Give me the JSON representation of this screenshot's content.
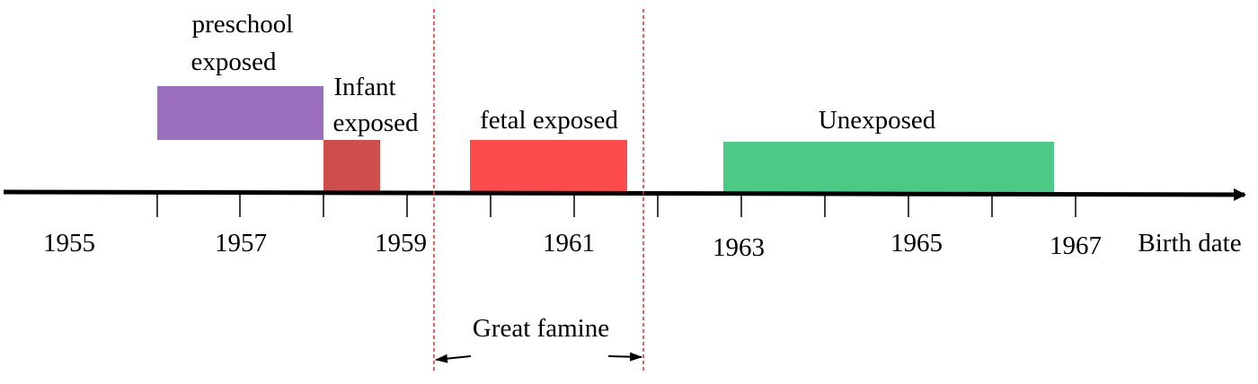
{
  "timeline": {
    "axis_label": "Birth date",
    "tick_labels": [
      "1955",
      "1957",
      "1959",
      "1961",
      "1963",
      "1965",
      "1967"
    ]
  },
  "periods": [
    {
      "id": "preschool",
      "label_line1": "preschool",
      "label_line2": "exposed",
      "color": "#9b6fbd"
    },
    {
      "id": "infant",
      "label_line1": "Infant",
      "label_line2": "exposed",
      "color": "#cf4d4a"
    },
    {
      "id": "fetal",
      "label_line1": "fetal exposed",
      "color": "#fb4b4d"
    },
    {
      "id": "unexposed",
      "label_line1": "Unexposed",
      "color": "#4cc985"
    }
  ],
  "famine": {
    "label": "Great famine",
    "line_color": "#e0302f"
  }
}
